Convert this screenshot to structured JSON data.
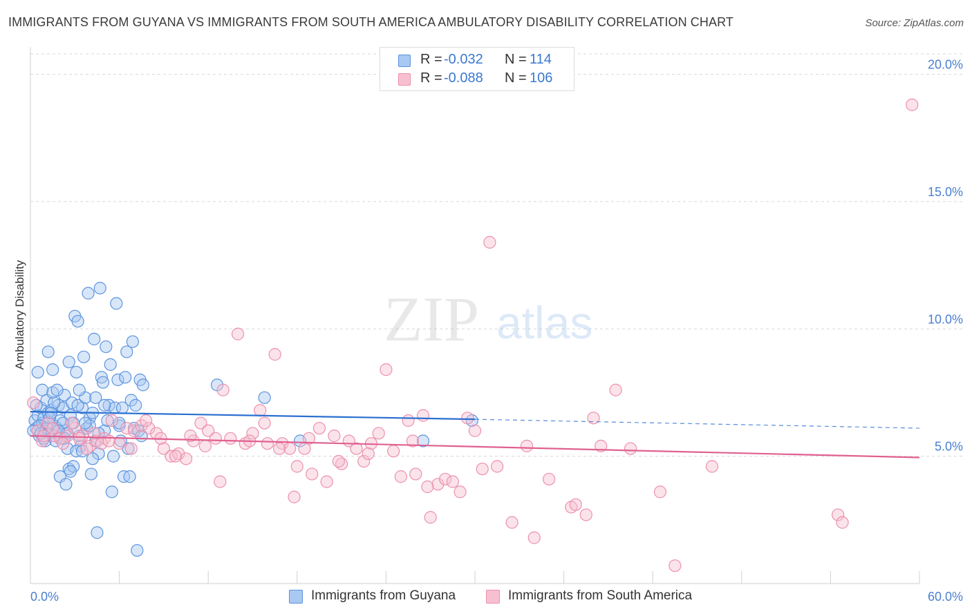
{
  "header": {
    "title": "IMMIGRANTS FROM GUYANA VS IMMIGRANTS FROM SOUTH AMERICA AMBULATORY DISABILITY CORRELATION CHART",
    "source": "Source: ZipAtlas.com"
  },
  "legend": {
    "rows": [
      {
        "r_label": "R =",
        "r_value": "-0.032",
        "n_label": "N =",
        "n_value": "114"
      },
      {
        "r_label": "R =",
        "r_value": "-0.088",
        "n_label": "N =",
        "n_value": "106"
      }
    ]
  },
  "bottom_legend": {
    "items": [
      {
        "label": "Immigrants from Guyana"
      },
      {
        "label": "Immigrants from South America"
      }
    ]
  },
  "watermark": {
    "zip": "ZIP",
    "atlas": "atlas"
  },
  "colors": {
    "guyana_fill": "#a9c8f2",
    "guyana_stroke": "#5b93dd",
    "guyana_line": "#2a6fd0",
    "sa_fill": "#f7c0d0",
    "sa_stroke": "#ec8fae",
    "sa_line": "#e06090",
    "tick_label": "#4a7fd0",
    "grid": "#d8d8d8"
  },
  "chart_data": {
    "type": "scatter",
    "title": "IMMIGRANTS FROM GUYANA VS IMMIGRANTS FROM SOUTH AMERICA AMBULATORY DISABILITY CORRELATION CHART",
    "xlabel": "",
    "ylabel": "Ambulatory Disability",
    "xlim": [
      0,
      60
    ],
    "ylim": [
      0,
      20.8
    ],
    "x_tick_labels": [
      "0.0%",
      "60.0%"
    ],
    "y_ticks": [
      5,
      10,
      15,
      20
    ],
    "y_tick_labels": [
      "5.0%",
      "10.0%",
      "15.0%",
      "20.0%"
    ],
    "grid": "horizontal dashed",
    "legend_placement": "top-center",
    "series": [
      {
        "name": "Immigrants from Guyana",
        "r": -0.032,
        "n": 114,
        "trend": {
          "x": [
            0,
            30
          ],
          "y": [
            6.75,
            6.45
          ],
          "extend_dashed_to": [
            60,
            6.1
          ]
        },
        "points": [
          [
            0.3,
            6.4
          ],
          [
            0.4,
            6.1
          ],
          [
            0.5,
            6.6
          ],
          [
            0.6,
            5.8
          ],
          [
            0.7,
            6.9
          ],
          [
            0.8,
            6.3
          ],
          [
            0.9,
            6.5
          ],
          [
            1.0,
            6.0
          ],
          [
            1.1,
            7.2
          ],
          [
            1.2,
            6.7
          ],
          [
            1.3,
            5.9
          ],
          [
            1.4,
            6.8
          ],
          [
            1.5,
            7.5
          ],
          [
            1.6,
            6.2
          ],
          [
            1.7,
            5.6
          ],
          [
            1.8,
            6.1
          ],
          [
            1.9,
            7.0
          ],
          [
            2.0,
            6.4
          ],
          [
            2.1,
            5.7
          ],
          [
            2.2,
            6.9
          ],
          [
            2.3,
            7.4
          ],
          [
            2.4,
            6.0
          ],
          [
            2.5,
            5.3
          ],
          [
            2.6,
            4.5
          ],
          [
            2.7,
            6.6
          ],
          [
            2.8,
            7.1
          ],
          [
            2.9,
            6.3
          ],
          [
            3.0,
            10.5
          ],
          [
            3.1,
            8.3
          ],
          [
            3.2,
            10.3
          ],
          [
            3.3,
            5.8
          ],
          [
            3.4,
            5.4
          ],
          [
            3.5,
            6.9
          ],
          [
            3.6,
            8.9
          ],
          [
            3.7,
            7.3
          ],
          [
            3.8,
            6.1
          ],
          [
            3.9,
            11.4
          ],
          [
            4.0,
            6.5
          ],
          [
            4.1,
            4.3
          ],
          [
            4.2,
            6.7
          ],
          [
            4.3,
            9.6
          ],
          [
            4.4,
            5.6
          ],
          [
            4.5,
            2.0
          ],
          [
            4.6,
            5.1
          ],
          [
            4.7,
            11.6
          ],
          [
            4.8,
            8.1
          ],
          [
            4.9,
            7.9
          ],
          [
            5.0,
            6.0
          ],
          [
            5.1,
            9.3
          ],
          [
            5.2,
            6.4
          ],
          [
            5.3,
            7.0
          ],
          [
            5.4,
            8.6
          ],
          [
            5.5,
            3.6
          ],
          [
            5.6,
            5.0
          ],
          [
            5.7,
            6.9
          ],
          [
            5.8,
            11.0
          ],
          [
            5.9,
            8.0
          ],
          [
            6.0,
            6.2
          ],
          [
            6.1,
            5.6
          ],
          [
            6.2,
            6.9
          ],
          [
            6.3,
            4.2
          ],
          [
            6.4,
            8.1
          ],
          [
            6.5,
            9.1
          ],
          [
            6.6,
            5.3
          ],
          [
            6.7,
            4.2
          ],
          [
            6.8,
            7.2
          ],
          [
            6.9,
            9.5
          ],
          [
            7.0,
            6.1
          ],
          [
            7.1,
            7.0
          ],
          [
            7.2,
            1.3
          ],
          [
            7.3,
            6.0
          ],
          [
            7.4,
            8.0
          ],
          [
            7.5,
            5.8
          ],
          [
            7.6,
            7.8
          ],
          [
            0.5,
            8.3
          ],
          [
            0.8,
            7.6
          ],
          [
            1.0,
            5.6
          ],
          [
            1.2,
            9.1
          ],
          [
            1.5,
            8.4
          ],
          [
            1.8,
            7.6
          ],
          [
            2.0,
            4.2
          ],
          [
            2.4,
            3.9
          ],
          [
            2.6,
            8.7
          ],
          [
            3.1,
            5.2
          ],
          [
            3.5,
            5.2
          ],
          [
            0.6,
            6.2
          ],
          [
            0.9,
            5.7
          ],
          [
            1.1,
            6.1
          ],
          [
            1.3,
            6.5
          ],
          [
            1.6,
            7.1
          ],
          [
            2.2,
            6.3
          ],
          [
            2.5,
            5.9
          ],
          [
            2.9,
            4.6
          ],
          [
            3.3,
            7.6
          ],
          [
            4.0,
            6.2
          ],
          [
            4.4,
            7.3
          ],
          [
            12.6,
            7.8
          ],
          [
            15.8,
            7.3
          ],
          [
            18.2,
            5.6
          ],
          [
            26.5,
            5.6
          ],
          [
            29.8,
            6.4
          ],
          [
            0.2,
            6.0
          ],
          [
            0.4,
            7.0
          ],
          [
            0.7,
            5.9
          ],
          [
            1.4,
            6.7
          ],
          [
            1.9,
            6.0
          ],
          [
            2.3,
            5.7
          ],
          [
            2.7,
            4.4
          ],
          [
            3.2,
            7.0
          ],
          [
            3.7,
            6.3
          ],
          [
            4.2,
            4.9
          ],
          [
            4.6,
            5.9
          ],
          [
            5.0,
            7.0
          ],
          [
            6.0,
            6.3
          ]
        ]
      },
      {
        "name": "Immigrants from South America",
        "r": -0.088,
        "n": 106,
        "trend": {
          "x": [
            0,
            60
          ],
          "y": [
            5.8,
            4.95
          ]
        },
        "points": [
          [
            0.2,
            7.1
          ],
          [
            0.5,
            6.0
          ],
          [
            0.8,
            5.6
          ],
          [
            1.2,
            6.3
          ],
          [
            1.6,
            5.8
          ],
          [
            2.0,
            5.7
          ],
          [
            2.5,
            5.8
          ],
          [
            3.0,
            6.1
          ],
          [
            3.5,
            5.8
          ],
          [
            4.0,
            5.4
          ],
          [
            4.5,
            5.6
          ],
          [
            5.0,
            5.7
          ],
          [
            5.5,
            6.4
          ],
          [
            6.0,
            5.5
          ],
          [
            6.5,
            6.1
          ],
          [
            7.0,
            6.0
          ],
          [
            7.5,
            6.2
          ],
          [
            8.0,
            6.1
          ],
          [
            8.5,
            5.9
          ],
          [
            9.0,
            5.3
          ],
          [
            9.5,
            5.0
          ],
          [
            10.0,
            5.1
          ],
          [
            10.5,
            4.9
          ],
          [
            11.0,
            5.6
          ],
          [
            11.5,
            6.3
          ],
          [
            12.0,
            6.0
          ],
          [
            12.5,
            5.7
          ],
          [
            13.0,
            7.6
          ],
          [
            13.5,
            5.7
          ],
          [
            14.0,
            9.8
          ],
          [
            14.5,
            5.5
          ],
          [
            15.0,
            5.9
          ],
          [
            15.5,
            6.8
          ],
          [
            16.0,
            5.5
          ],
          [
            16.5,
            9.0
          ],
          [
            17.0,
            5.5
          ],
          [
            17.5,
            5.3
          ],
          [
            18.0,
            4.6
          ],
          [
            18.5,
            5.3
          ],
          [
            19.0,
            4.3
          ],
          [
            19.5,
            6.1
          ],
          [
            20.0,
            4.0
          ],
          [
            20.5,
            5.8
          ],
          [
            21.0,
            4.7
          ],
          [
            21.5,
            5.6
          ],
          [
            22.0,
            5.3
          ],
          [
            22.5,
            4.8
          ],
          [
            23.0,
            5.5
          ],
          [
            23.5,
            5.9
          ],
          [
            24.0,
            8.4
          ],
          [
            24.5,
            5.2
          ],
          [
            25.0,
            4.2
          ],
          [
            25.5,
            6.4
          ],
          [
            26.0,
            4.3
          ],
          [
            26.5,
            6.6
          ],
          [
            27.0,
            2.6
          ],
          [
            27.5,
            3.9
          ],
          [
            28.0,
            4.1
          ],
          [
            28.5,
            4.0
          ],
          [
            29.0,
            3.6
          ],
          [
            29.5,
            6.5
          ],
          [
            30.0,
            6.0
          ],
          [
            30.5,
            4.5
          ],
          [
            31.0,
            13.4
          ],
          [
            31.5,
            4.6
          ],
          [
            32.5,
            2.4
          ],
          [
            33.5,
            5.4
          ],
          [
            34.0,
            1.8
          ],
          [
            35.0,
            4.1
          ],
          [
            36.5,
            3.0
          ],
          [
            37.5,
            2.7
          ],
          [
            38.0,
            6.5
          ],
          [
            38.5,
            5.4
          ],
          [
            39.5,
            7.6
          ],
          [
            40.5,
            5.3
          ],
          [
            0.9,
            5.8
          ],
          [
            1.5,
            6.1
          ],
          [
            2.2,
            5.5
          ],
          [
            2.8,
            6.3
          ],
          [
            3.3,
            5.7
          ],
          [
            3.8,
            5.3
          ],
          [
            4.3,
            5.9
          ],
          [
            4.8,
            5.5
          ],
          [
            5.3,
            5.6
          ],
          [
            6.8,
            5.3
          ],
          [
            7.8,
            6.4
          ],
          [
            8.8,
            5.7
          ],
          [
            9.8,
            5.0
          ],
          [
            10.8,
            5.8
          ],
          [
            11.8,
            5.4
          ],
          [
            12.8,
            4.0
          ],
          [
            14.8,
            5.6
          ],
          [
            15.8,
            6.3
          ],
          [
            16.8,
            5.3
          ],
          [
            17.8,
            3.4
          ],
          [
            18.8,
            5.7
          ],
          [
            20.8,
            4.8
          ],
          [
            22.8,
            5.1
          ],
          [
            25.8,
            5.6
          ],
          [
            26.8,
            3.8
          ],
          [
            36.8,
            3.1
          ],
          [
            42.5,
            3.6
          ],
          [
            46.0,
            4.6
          ],
          [
            54.5,
            2.7
          ],
          [
            54.8,
            2.4
          ],
          [
            59.5,
            18.8
          ],
          [
            43.5,
            0.7
          ]
        ]
      }
    ]
  }
}
